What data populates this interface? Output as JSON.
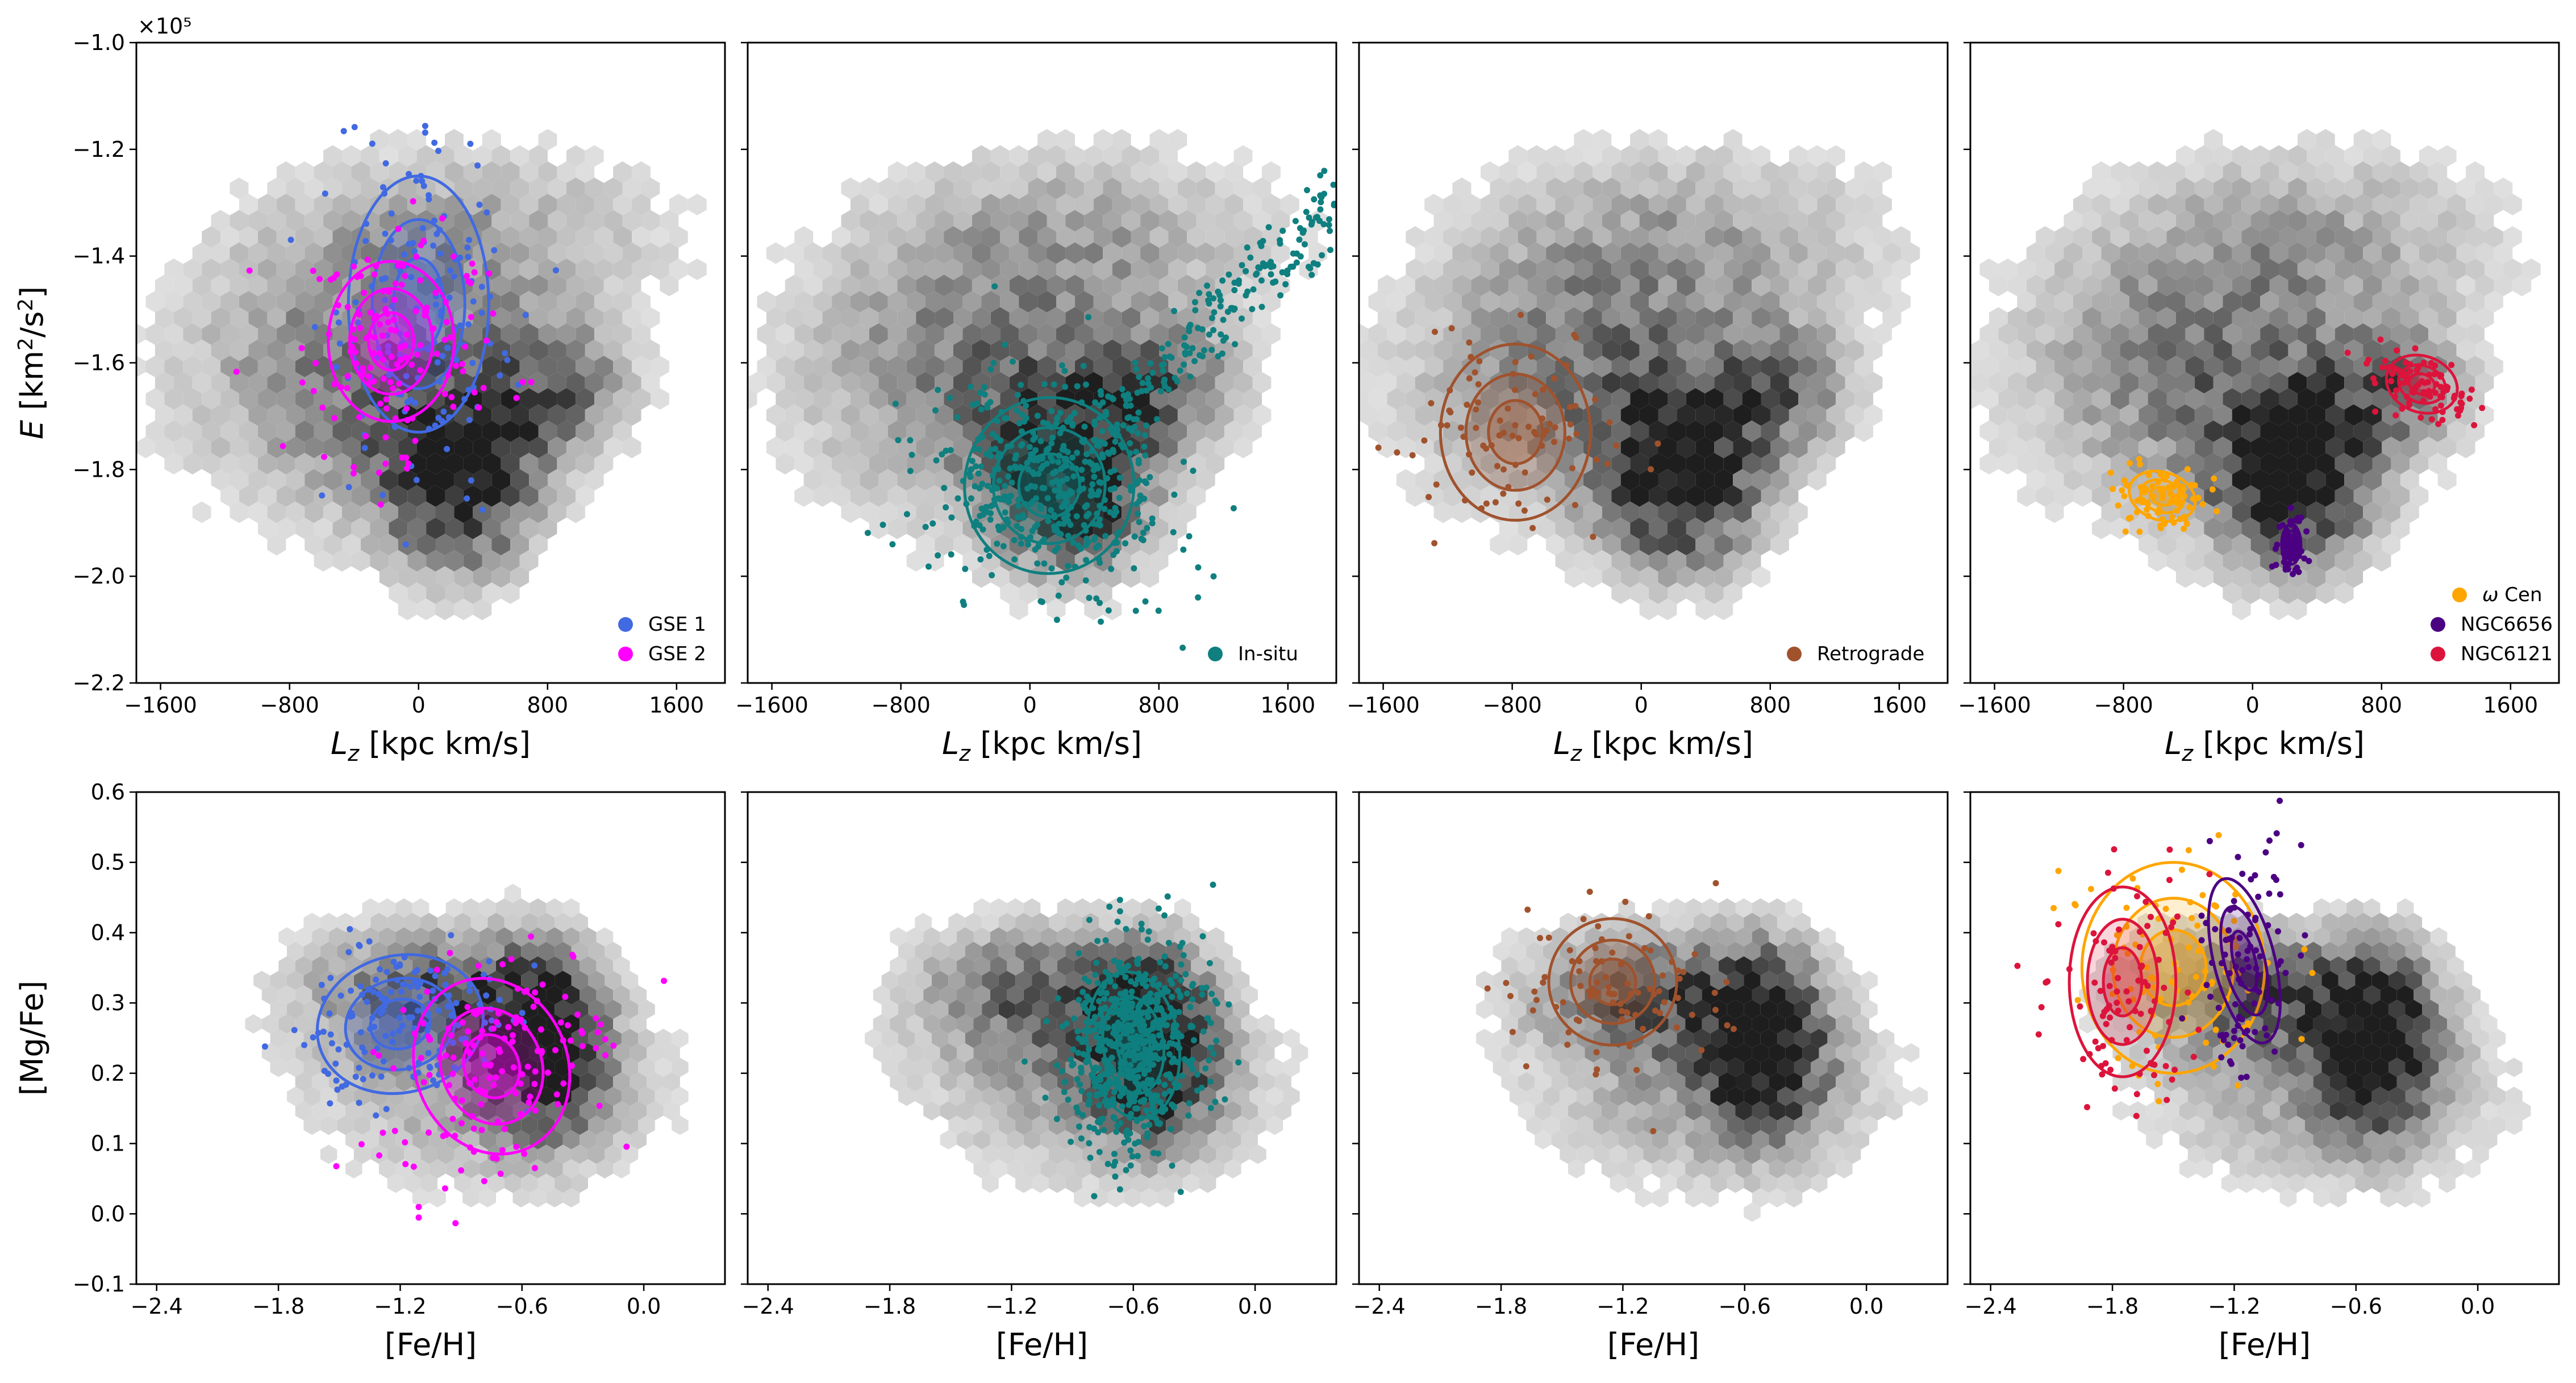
{
  "colors": {
    "gse1": "#4169e1",
    "gse2": "#ff00ff",
    "insitu": "#0f7f7f",
    "retro": "#a0522d",
    "omega": "#ffa500",
    "ngc6656": "#4b0082",
    "ngc6121": "#dc143c"
  },
  "chart_data": [
    {
      "id": "top-gse",
      "type": "scatter",
      "xlabel": "L_z [kpc km/s]",
      "ylabel": "E [km²/s²]",
      "xlim": [
        -1750,
        1900
      ],
      "ylim": [
        -2.2,
        -1.0
      ],
      "xticks": [
        -1600,
        -800,
        0,
        800,
        1600
      ],
      "yticks": [
        -2.2,
        -2.0,
        -1.8,
        -1.6,
        -1.4,
        -1.2,
        -1.0
      ],
      "offset_label": "×10⁵",
      "series": [
        {
          "name": "GSE 1",
          "color_key": "gse1",
          "contour_center": [
            0,
            -1.49
          ],
          "spread": [
            580,
            0.32
          ],
          "tilt": 0
        },
        {
          "name": "GSE 2",
          "color_key": "gse2",
          "contour_center": [
            -170,
            -1.56
          ],
          "spread": [
            520,
            0.2
          ],
          "tilt": 0
        }
      ],
      "legend": [
        "GSE 1",
        "GSE 2"
      ],
      "legend_position": "bottom-right"
    },
    {
      "id": "top-insitu",
      "type": "scatter",
      "xlabel": "L_z [kpc km/s]",
      "xlim": [
        -1750,
        1900
      ],
      "ylim": [
        -2.2,
        -1.0
      ],
      "xticks": [
        -1600,
        -800,
        0,
        800,
        1600
      ],
      "series": [
        {
          "name": "In-situ",
          "color_key": "insitu",
          "contour_center": [
            120,
            -1.83
          ],
          "spread": [
            700,
            0.22
          ],
          "tilt": -0.2
        }
      ],
      "legend": [
        "In-situ"
      ],
      "legend_position": "bottom-right"
    },
    {
      "id": "top-retro",
      "type": "scatter",
      "xlabel": "L_z [kpc km/s]",
      "xlim": [
        -1750,
        1900
      ],
      "ylim": [
        -2.2,
        -1.0
      ],
      "xticks": [
        -1600,
        -800,
        0,
        800,
        1600
      ],
      "series": [
        {
          "name": "Retrograde",
          "color_key": "retro",
          "contour_center": [
            -780,
            -1.73
          ],
          "spread": [
            620,
            0.22
          ],
          "tilt": 0
        }
      ],
      "legend": [
        "Retrograde"
      ],
      "legend_position": "bottom-right"
    },
    {
      "id": "top-gc",
      "type": "scatter",
      "xlabel": "L_z [kpc km/s]",
      "xlim": [
        -1750,
        1900
      ],
      "ylim": [
        -2.2,
        -1.0
      ],
      "xticks": [
        -1600,
        -800,
        0,
        800,
        1600
      ],
      "series": [
        {
          "name": "ω Cen",
          "color_key": "omega",
          "contour_center": [
            -560,
            -1.85
          ],
          "spread": [
            280,
            0.06
          ],
          "tilt": -0.45
        },
        {
          "name": "NGC6656",
          "color_key": "ngc6656",
          "contour_center": [
            240,
            -1.94
          ],
          "spread": [
            80,
            0.05
          ],
          "tilt": 0
        },
        {
          "name": "NGC6121",
          "color_key": "ngc6121",
          "contour_center": [
            1050,
            -1.64
          ],
          "spread": [
            300,
            0.07
          ],
          "tilt": -0.5
        }
      ],
      "legend": [
        "ω Cen",
        "NGC6656",
        "NGC6121"
      ],
      "legend_position": "bottom-right"
    },
    {
      "id": "bot-gse",
      "type": "scatter",
      "xlabel": "[Fe/H]",
      "ylabel": "[Mg/Fe]",
      "xlim": [
        -2.5,
        0.4
      ],
      "ylim": [
        -0.1,
        0.6
      ],
      "xticks": [
        -2.4,
        -1.8,
        -1.2,
        -0.6,
        0.0
      ],
      "yticks": [
        -0.1,
        0.0,
        0.1,
        0.2,
        0.3,
        0.4,
        0.5,
        0.6
      ],
      "series": [
        {
          "name": "GSE 1",
          "color_key": "gse1",
          "contour_center": [
            -1.2,
            0.27
          ],
          "spread": [
            0.55,
            0.13
          ],
          "tilt": 0.35
        },
        {
          "name": "GSE 2",
          "color_key": "gse2",
          "contour_center": [
            -0.75,
            0.21
          ],
          "spread": [
            0.5,
            0.17
          ],
          "tilt": 0.55
        }
      ]
    },
    {
      "id": "bot-insitu",
      "type": "scatter",
      "xlabel": "[Fe/H]",
      "xlim": [
        -2.5,
        0.4
      ],
      "ylim": [
        -0.1,
        0.6
      ],
      "xticks": [
        -2.4,
        -1.8,
        -1.2,
        -0.6,
        0.0
      ],
      "series": [
        {
          "name": "In-situ",
          "color_key": "insitu",
          "contour_center": [
            -0.6,
            0.24
          ],
          "spread": [
            0.3,
            0.14
          ],
          "tilt": 0.2
        }
      ]
    },
    {
      "id": "bot-retro",
      "type": "scatter",
      "xlabel": "[Fe/H]",
      "xlim": [
        -2.5,
        0.4
      ],
      "ylim": [
        -0.1,
        0.6
      ],
      "xticks": [
        -2.4,
        -1.8,
        -1.2,
        -0.6,
        0.0
      ],
      "series": [
        {
          "name": "Retrograde",
          "color_key": "retro",
          "contour_center": [
            -1.25,
            0.33
          ],
          "spread": [
            0.42,
            0.12
          ],
          "tilt": 0
        }
      ]
    },
    {
      "id": "bot-gc",
      "type": "scatter",
      "xlabel": "[Fe/H]",
      "xlim": [
        -2.5,
        0.4
      ],
      "ylim": [
        -0.1,
        0.6
      ],
      "xticks": [
        -2.4,
        -1.8,
        -1.2,
        -0.6,
        0.0
      ],
      "series": [
        {
          "name": "ω Cen",
          "color_key": "omega",
          "contour_center": [
            -1.5,
            0.35
          ],
          "spread": [
            0.6,
            0.2
          ],
          "tilt": 0
        },
        {
          "name": "NGC6656",
          "color_key": "ngc6656",
          "contour_center": [
            -1.15,
            0.36
          ],
          "spread": [
            0.2,
            0.16
          ],
          "tilt": 0.35
        },
        {
          "name": "NGC6121",
          "color_key": "ngc6121",
          "contour_center": [
            -1.75,
            0.33
          ],
          "spread": [
            0.35,
            0.18
          ],
          "tilt": 0
        }
      ]
    }
  ]
}
